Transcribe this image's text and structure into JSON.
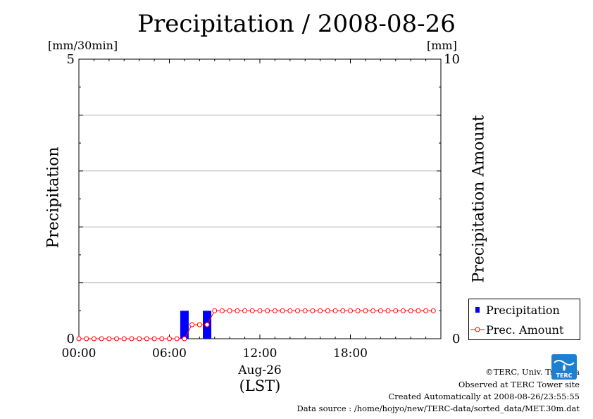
{
  "chart_data": {
    "type": "bar+line",
    "title": "Precipitation / 2008-08-26",
    "left_axis": {
      "label": "Precipitation",
      "unit": "[mm/30min]",
      "ylim": [
        0,
        5
      ],
      "tick_labels": [
        "0",
        "5"
      ]
    },
    "right_axis": {
      "label": "Precipitation Amount",
      "unit": "[mm]",
      "ylim": [
        0,
        10
      ],
      "tick_labels": [
        "0",
        "10"
      ]
    },
    "x_axis": {
      "tick_labels": [
        "00:00",
        "06:00",
        "12:00",
        "18:00"
      ],
      "date_label": "Aug-26",
      "tz_label": "(LST)",
      "xlim_hours": [
        0,
        24
      ]
    },
    "grid": true,
    "legend_position": "bottom-right outside",
    "series": [
      {
        "name": "Precipitation",
        "kind": "bar",
        "axis": "left",
        "color": "#0000ff",
        "bars": [
          {
            "t": 7.0,
            "value": 0.5
          },
          {
            "t": 8.5,
            "value": 0.5
          }
        ]
      },
      {
        "name": "Prec. Amount",
        "kind": "line",
        "axis": "right",
        "color": "#ff0000",
        "marker": "open-circle",
        "points": [
          [
            0.0,
            0
          ],
          [
            0.5,
            0
          ],
          [
            1.0,
            0
          ],
          [
            1.5,
            0
          ],
          [
            2.0,
            0
          ],
          [
            2.5,
            0
          ],
          [
            3.0,
            0
          ],
          [
            3.5,
            0
          ],
          [
            4.0,
            0
          ],
          [
            4.5,
            0
          ],
          [
            5.0,
            0
          ],
          [
            5.5,
            0
          ],
          [
            6.0,
            0
          ],
          [
            6.5,
            0
          ],
          [
            7.0,
            0
          ],
          [
            7.5,
            0.5
          ],
          [
            8.0,
            0.5
          ],
          [
            8.5,
            0.5
          ],
          [
            9.0,
            1.0
          ],
          [
            9.5,
            1.0
          ],
          [
            10.0,
            1.0
          ],
          [
            10.5,
            1.0
          ],
          [
            11.0,
            1.0
          ],
          [
            11.5,
            1.0
          ],
          [
            12.0,
            1.0
          ],
          [
            12.5,
            1.0
          ],
          [
            13.0,
            1.0
          ],
          [
            13.5,
            1.0
          ],
          [
            14.0,
            1.0
          ],
          [
            14.5,
            1.0
          ],
          [
            15.0,
            1.0
          ],
          [
            15.5,
            1.0
          ],
          [
            16.0,
            1.0
          ],
          [
            16.5,
            1.0
          ],
          [
            17.0,
            1.0
          ],
          [
            17.5,
            1.0
          ],
          [
            18.0,
            1.0
          ],
          [
            18.5,
            1.0
          ],
          [
            19.0,
            1.0
          ],
          [
            19.5,
            1.0
          ],
          [
            20.0,
            1.0
          ],
          [
            20.5,
            1.0
          ],
          [
            21.0,
            1.0
          ],
          [
            21.5,
            1.0
          ],
          [
            22.0,
            1.0
          ],
          [
            22.5,
            1.0
          ],
          [
            23.0,
            1.0
          ],
          [
            23.5,
            1.0
          ]
        ]
      }
    ]
  },
  "legend": {
    "item1": "Precipitation",
    "item2": "Prec. Amount"
  },
  "credits": {
    "line1": "©TERC, Univ. Tsukuba",
    "line2": "Observed at TERC Tower site",
    "line3": "Created Automatically at 2008-08-26/23:55:55",
    "line4": "Data source : /home/hojyo/new/TERC-data/sorted_data/MET.30m.dat"
  },
  "logo": {
    "text": "TERC",
    "color": "#1e7fd0",
    "icon": "terc-logo-icon"
  }
}
